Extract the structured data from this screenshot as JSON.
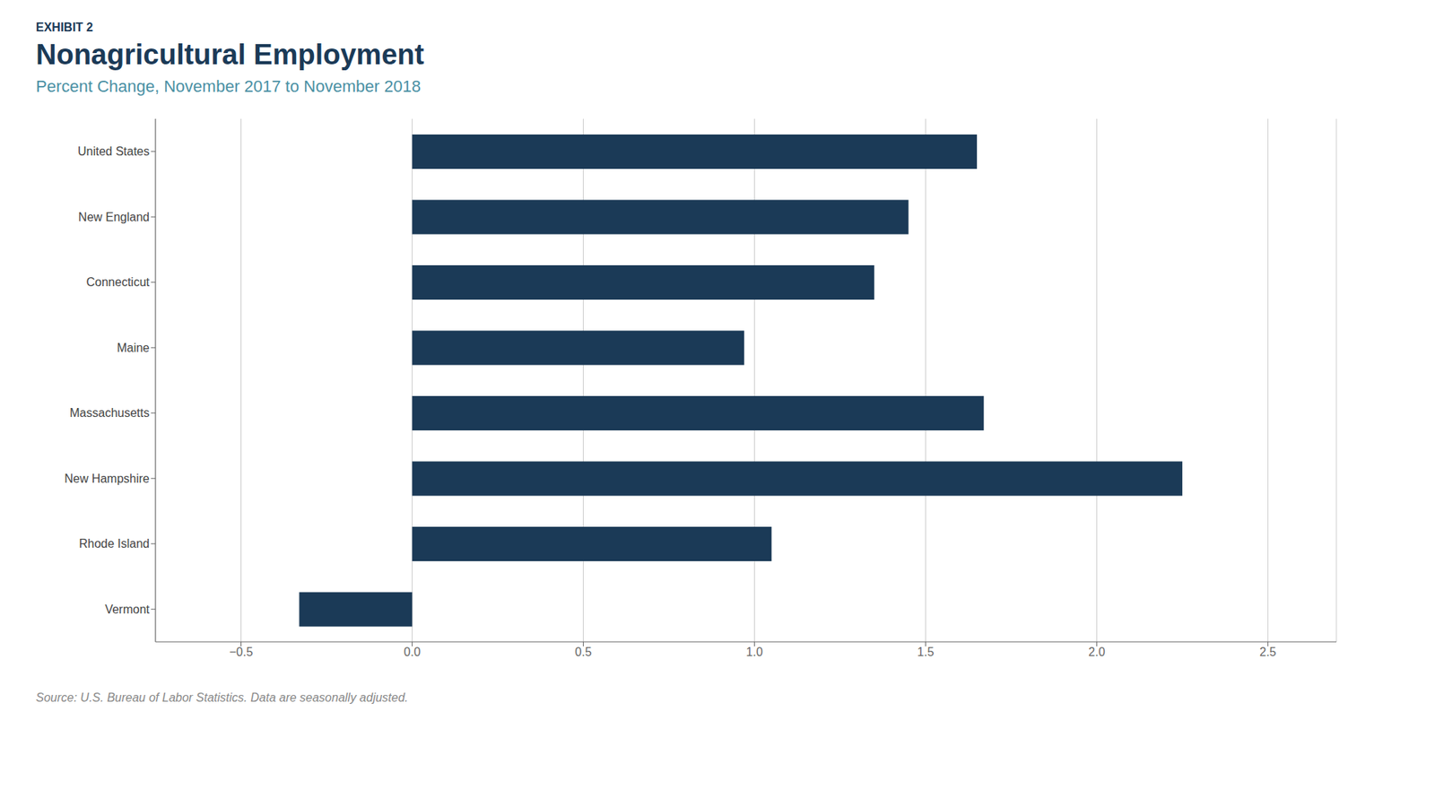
{
  "chart_data": {
    "type": "bar",
    "orientation": "horizontal",
    "title": "Nonagricultural Employment",
    "subtitle": "Percent Change, November 2017 to November 2018",
    "annotations": [
      "EXHIBIT 2",
      "Source: U.S. Bureau of Labor Statistics. Data are seasonally adjusted."
    ],
    "categories": [
      "United States",
      "New England",
      "Connecticut",
      "Maine",
      "Massachusetts",
      "New Hampshire",
      "Rhode Island",
      "Vermont"
    ],
    "values": [
      1.65,
      1.45,
      1.35,
      0.97,
      1.67,
      2.25,
      1.05,
      -0.33
    ],
    "color": "#1b3a57",
    "xlim": [
      -0.75,
      2.7
    ],
    "xticks": [
      {
        "value": -0.5,
        "label": "−0.5"
      },
      {
        "value": 0,
        "label": "0.0"
      },
      0.5,
      {
        "value": 1,
        "label": "1.0"
      },
      1.5,
      {
        "value": 2,
        "label": "2.0"
      },
      2.5
    ],
    "grid": true
  }
}
